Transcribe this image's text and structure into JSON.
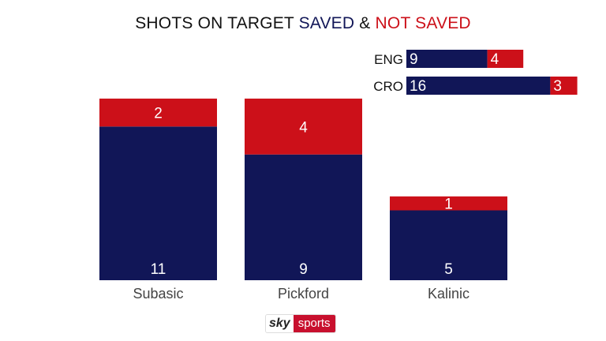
{
  "title": {
    "prefix": "SHOTS ON TARGET ",
    "saved": "SAVED",
    "amp": " & ",
    "not_saved": "NOT SAVED"
  },
  "colors": {
    "saved": "#111657",
    "not_saved": "#cc1019"
  },
  "chart_data": [
    {
      "type": "bar",
      "stacked": true,
      "categories": [
        "Subasic",
        "Pickford",
        "Kalinic"
      ],
      "series": [
        {
          "name": "SAVED",
          "values": [
            11,
            9,
            5
          ]
        },
        {
          "name": "NOT SAVED",
          "values": [
            2,
            4,
            1
          ]
        }
      ]
    },
    {
      "type": "bar",
      "orientation": "horizontal",
      "stacked": true,
      "categories": [
        "ENG",
        "CRO"
      ],
      "series": [
        {
          "name": "SAVED",
          "values": [
            9,
            16
          ]
        },
        {
          "name": "NOT SAVED",
          "values": [
            4,
            3
          ]
        }
      ]
    }
  ],
  "logo": {
    "sky": "sky",
    "sports": "sports"
  }
}
